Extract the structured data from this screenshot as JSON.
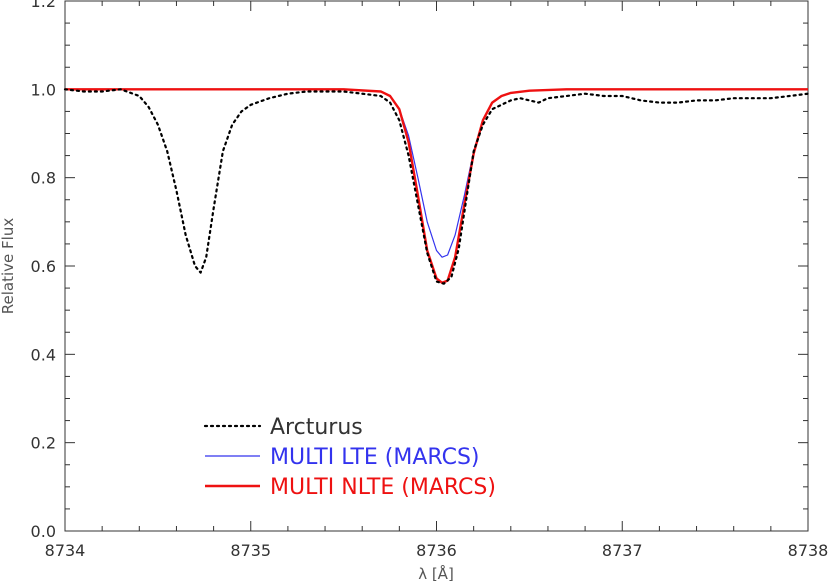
{
  "chart_data": {
    "type": "line",
    "title": "",
    "xlabel": "λ  [Å]",
    "ylabel": "Relative Flux",
    "xlim": [
      8734,
      8738
    ],
    "ylim": [
      0.0,
      1.2
    ],
    "x_ticks": [
      "8734",
      "8735",
      "8736",
      "8737",
      "8738"
    ],
    "y_ticks": [
      "0.0",
      "0.2",
      "0.4",
      "0.6",
      "0.8",
      "1.0",
      "1.2"
    ],
    "grid": false,
    "legend_position": "bottom-left",
    "series": [
      {
        "name": "Arcturus",
        "color": "#000000",
        "style": "dotted",
        "x": [
          8734.0,
          8734.1,
          8734.2,
          8734.3,
          8734.4,
          8734.45,
          8734.5,
          8734.55,
          8734.6,
          8734.65,
          8734.7,
          8734.73,
          8734.76,
          8734.8,
          8734.85,
          8734.9,
          8734.95,
          8735.0,
          8735.1,
          8735.2,
          8735.3,
          8735.4,
          8735.5,
          8735.6,
          8735.7,
          8735.75,
          8735.8,
          8735.85,
          8735.9,
          8735.95,
          8736.0,
          8736.04,
          8736.08,
          8736.12,
          8736.16,
          8736.2,
          8736.25,
          8736.3,
          8736.35,
          8736.4,
          8736.45,
          8736.5,
          8736.55,
          8736.6,
          8736.7,
          8736.8,
          8736.9,
          8737.0,
          8737.1,
          8737.2,
          8737.3,
          8737.4,
          8737.5,
          8737.6,
          8737.7,
          8737.8,
          8737.9,
          8738.0
        ],
        "y": [
          1.0,
          0.995,
          0.995,
          1.0,
          0.985,
          0.96,
          0.92,
          0.86,
          0.77,
          0.67,
          0.6,
          0.585,
          0.62,
          0.73,
          0.86,
          0.92,
          0.95,
          0.965,
          0.98,
          0.99,
          0.995,
          0.995,
          0.995,
          0.99,
          0.985,
          0.97,
          0.93,
          0.85,
          0.74,
          0.63,
          0.565,
          0.56,
          0.575,
          0.64,
          0.75,
          0.86,
          0.92,
          0.955,
          0.965,
          0.975,
          0.98,
          0.975,
          0.97,
          0.98,
          0.985,
          0.99,
          0.985,
          0.985,
          0.975,
          0.97,
          0.97,
          0.975,
          0.975,
          0.98,
          0.98,
          0.98,
          0.985,
          0.99
        ]
      },
      {
        "name": "MULTI LTE (MARCS)",
        "color": "#3333ee",
        "style": "solid",
        "x": [
          8734.0,
          8735.5,
          8735.7,
          8735.75,
          8735.8,
          8735.85,
          8735.9,
          8735.95,
          8736.0,
          8736.03,
          8736.06,
          8736.1,
          8736.15,
          8736.2,
          8736.25,
          8736.3,
          8736.35,
          8736.4,
          8736.5,
          8736.7,
          8738.0
        ],
        "y": [
          1.0,
          1.0,
          0.995,
          0.985,
          0.955,
          0.895,
          0.8,
          0.7,
          0.635,
          0.62,
          0.625,
          0.67,
          0.76,
          0.86,
          0.93,
          0.97,
          0.985,
          0.992,
          0.997,
          1.0,
          1.0
        ]
      },
      {
        "name": "MULTI NLTE (MARCS)",
        "color": "#ee1111",
        "style": "solid",
        "x": [
          8734.0,
          8735.5,
          8735.7,
          8735.75,
          8735.8,
          8735.85,
          8735.9,
          8735.95,
          8736.0,
          8736.03,
          8736.06,
          8736.1,
          8736.15,
          8736.2,
          8736.25,
          8736.3,
          8736.35,
          8736.4,
          8736.5,
          8736.7,
          8738.0
        ],
        "y": [
          1.0,
          1.0,
          0.995,
          0.985,
          0.955,
          0.88,
          0.76,
          0.635,
          0.572,
          0.562,
          0.567,
          0.62,
          0.74,
          0.855,
          0.93,
          0.97,
          0.985,
          0.992,
          0.997,
          1.0,
          1.0
        ]
      }
    ]
  }
}
